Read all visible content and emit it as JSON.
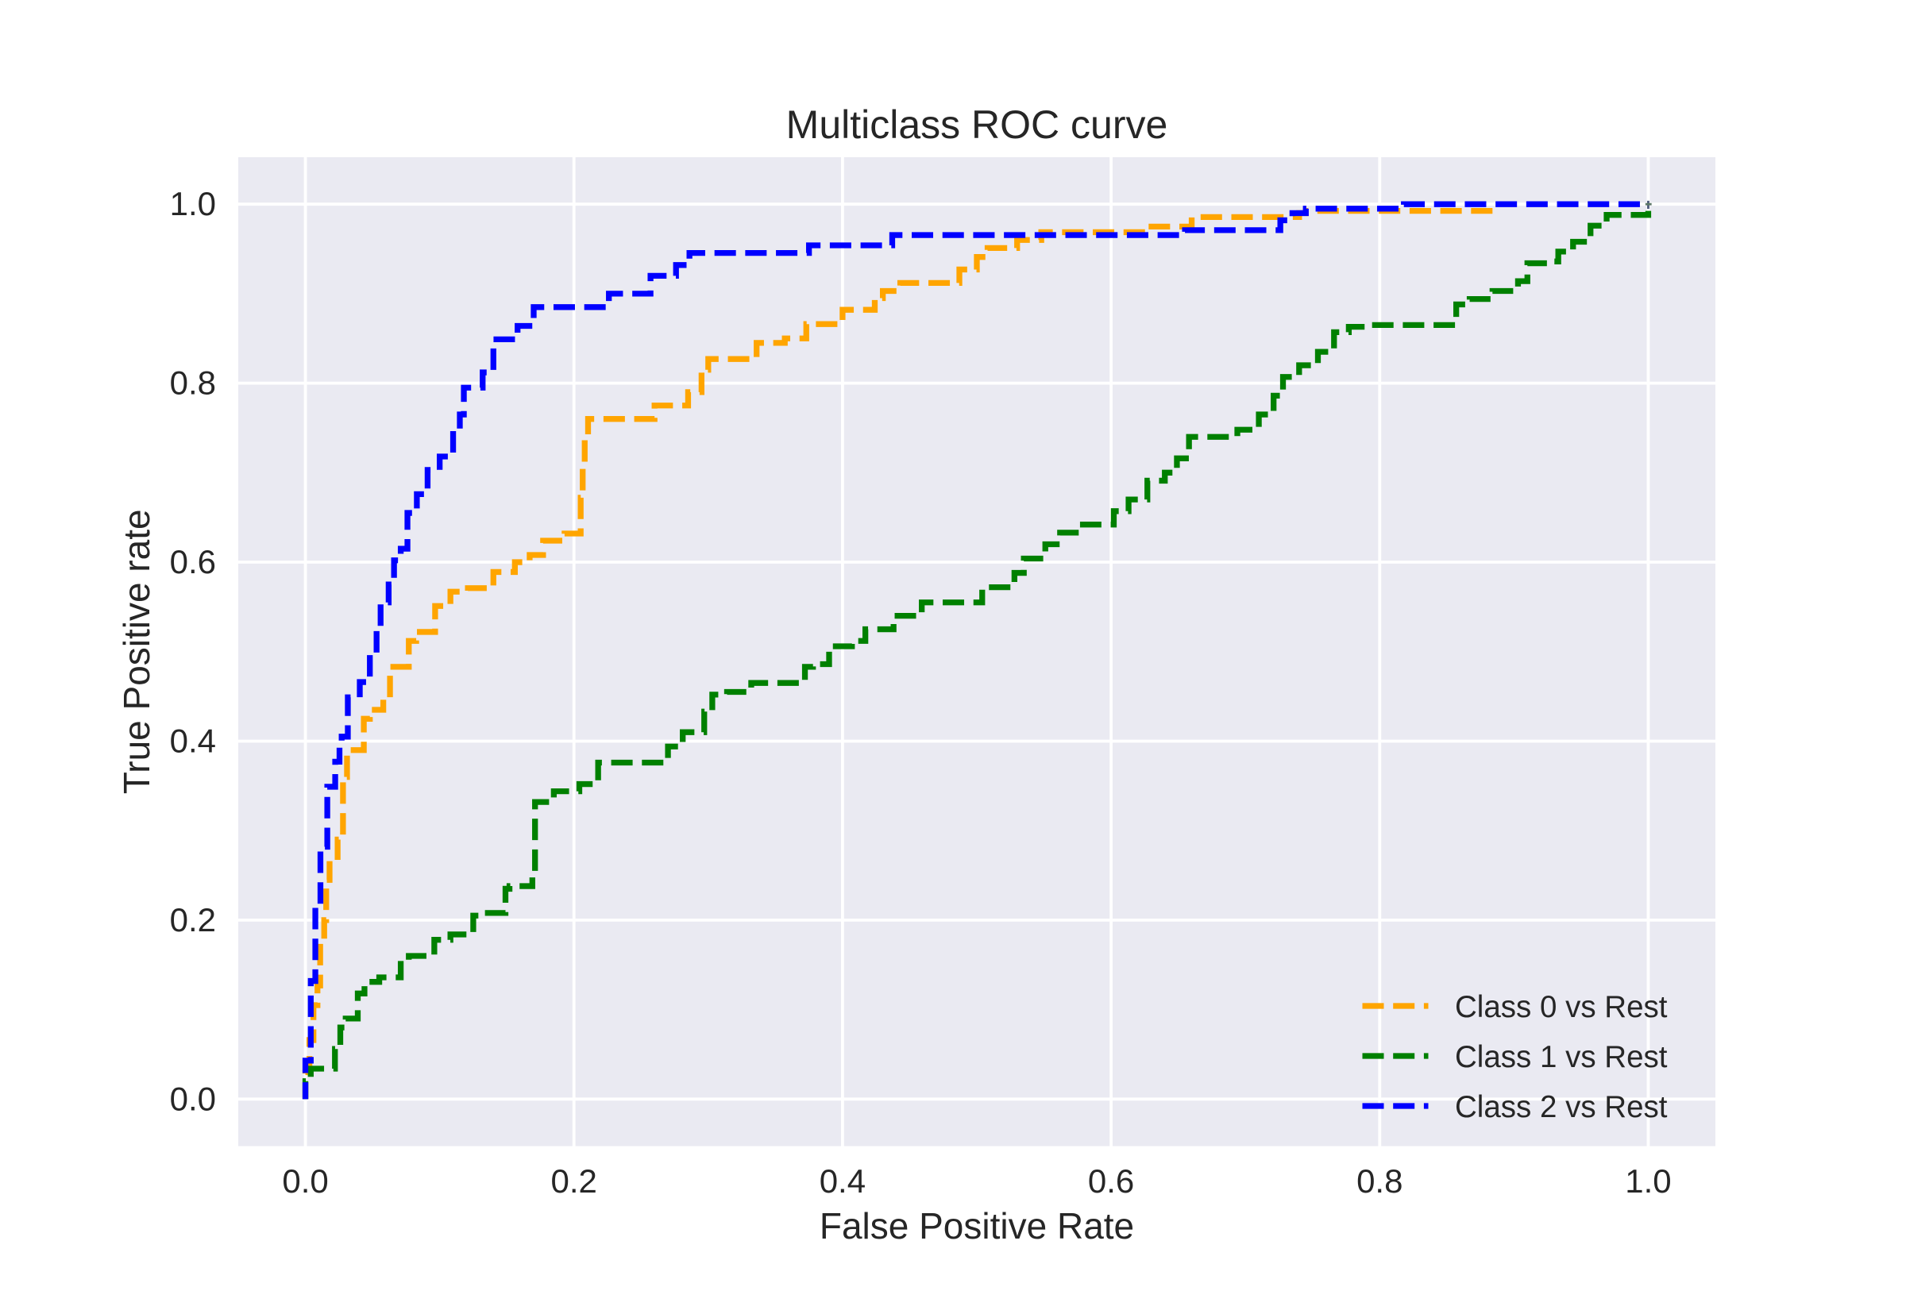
{
  "chart_data": {
    "type": "line",
    "title": "Multiclass ROC curve",
    "xlabel": "False Positive Rate",
    "ylabel": "True Positive rate",
    "xlim": [
      -0.05,
      1.05
    ],
    "ylim": [
      -0.0525,
      1.0525
    ],
    "xticks": [
      "0.0",
      "0.2",
      "0.4",
      "0.6",
      "0.8",
      "1.0"
    ],
    "yticks": [
      "0.0",
      "0.2",
      "0.4",
      "0.6",
      "0.8",
      "1.0"
    ],
    "xtick_values": [
      0.0,
      0.2,
      0.4,
      0.6,
      0.8,
      1.0
    ],
    "ytick_values": [
      0.0,
      0.2,
      0.4,
      0.6,
      0.8,
      1.0
    ],
    "grid": true,
    "linestyle": "dashed",
    "endpoint_marker": {
      "symbol": "+",
      "x": 1.0,
      "y": 1.0
    },
    "legend": {
      "position": "lower right",
      "entries": [
        {
          "label": "Class 0 vs Rest",
          "color": "#ffa500"
        },
        {
          "label": "Class 1 vs Rest",
          "color": "#008000"
        },
        {
          "label": "Class 2 vs Rest",
          "color": "#0000ff"
        }
      ]
    },
    "style": {
      "figure_bg": "#ffffff",
      "axes_bg": "#eaeaf2",
      "grid_color": "#ffffff",
      "text_color": "#262626"
    },
    "series": [
      {
        "name": "Class 0 vs Rest",
        "color": "#ffa500",
        "fpr": [
          0,
          0,
          0.003,
          0.003,
          0.006,
          0.006,
          0.009,
          0.009,
          0.011,
          0.011,
          0.014,
          0.014,
          0.0155,
          0.0155,
          0.018,
          0.018,
          0.024,
          0.024,
          0.028,
          0.028,
          0.031,
          0.031,
          0.0435,
          0.0435,
          0.048,
          0.048,
          0.058,
          0.058,
          0.063,
          0.063,
          0.077,
          0.077,
          0.0825,
          0.0825,
          0.0966,
          0.0966,
          0.108,
          0.108,
          0.121,
          0.121,
          0.14,
          0.14,
          0.156,
          0.156,
          0.167,
          0.167,
          0.177,
          0.177,
          0.193,
          0.193,
          0.205,
          0.205,
          0.2065,
          0.2065,
          0.208,
          0.208,
          0.2105,
          0.2105,
          0.212,
          0.26,
          0.26,
          0.285,
          0.285,
          0.295,
          0.295,
          0.3,
          0.3,
          0.336,
          0.336,
          0.357,
          0.357,
          0.373,
          0.373,
          0.4,
          0.4,
          0.424,
          0.424,
          0.43,
          0.43,
          0.443,
          0.443,
          0.487,
          0.487,
          0.5,
          0.5,
          0.508,
          0.508,
          0.53,
          0.53,
          0.548,
          0.548,
          0.627,
          0.627,
          0.66,
          0.66,
          0.74,
          0.74,
          0.745,
          0.745,
          0.884
        ],
        "tpr": [
          0,
          0.03,
          0.03,
          0.066,
          0.066,
          0.105,
          0.105,
          0.127,
          0.127,
          0.175,
          0.175,
          0.2,
          0.2,
          0.245,
          0.245,
          0.266,
          0.266,
          0.29,
          0.29,
          0.36,
          0.36,
          0.39,
          0.39,
          0.425,
          0.425,
          0.435,
          0.435,
          0.447,
          0.447,
          0.483,
          0.483,
          0.512,
          0.512,
          0.522,
          0.522,
          0.551,
          0.551,
          0.567,
          0.567,
          0.571,
          0.571,
          0.589,
          0.589,
          0.6,
          0.6,
          0.608,
          0.608,
          0.624,
          0.624,
          0.632,
          0.632,
          0.672,
          0.672,
          0.705,
          0.705,
          0.737,
          0.737,
          0.76,
          0.76,
          0.76,
          0.775,
          0.775,
          0.79,
          0.79,
          0.815,
          0.815,
          0.827,
          0.827,
          0.845,
          0.845,
          0.85,
          0.85,
          0.866,
          0.866,
          0.882,
          0.882,
          0.895,
          0.895,
          0.903,
          0.903,
          0.912,
          0.912,
          0.927,
          0.927,
          0.941,
          0.941,
          0.951,
          0.951,
          0.96,
          0.96,
          0.9687,
          0.9687,
          0.975,
          0.975,
          0.9856,
          0.9856,
          0.99,
          0.99,
          0.9925,
          0.9925
        ]
      },
      {
        "name": "Class 1 vs Rest",
        "color": "#008000",
        "fpr": [
          0,
          0,
          0.004,
          0.004,
          0.022,
          0.022,
          0.026,
          0.026,
          0.03,
          0.03,
          0.039,
          0.039,
          0.044,
          0.044,
          0.055,
          0.055,
          0.071,
          0.071,
          0.077,
          0.077,
          0.096,
          0.096,
          0.108,
          0.108,
          0.125,
          0.125,
          0.133,
          0.133,
          0.149,
          0.149,
          0.152,
          0.152,
          0.169,
          0.169,
          0.171,
          0.171,
          0.185,
          0.185,
          0.204,
          0.204,
          0.218,
          0.218,
          0.267,
          0.267,
          0.27,
          0.27,
          0.281,
          0.281,
          0.297,
          0.297,
          0.303,
          0.303,
          0.314,
          0.314,
          0.332,
          0.332,
          0.372,
          0.372,
          0.378,
          0.378,
          0.39,
          0.39,
          0.407,
          0.407,
          0.417,
          0.417,
          0.438,
          0.438,
          0.459,
          0.459,
          0.504,
          0.504,
          0.528,
          0.528,
          0.535,
          0.535,
          0.551,
          0.551,
          0.562,
          0.562,
          0.579,
          0.579,
          0.602,
          0.602,
          0.613,
          0.613,
          0.627,
          0.627,
          0.64,
          0.64,
          0.649,
          0.649,
          0.658,
          0.658,
          0.694,
          0.694,
          0.71,
          0.71,
          0.721,
          0.721,
          0.728,
          0.728,
          0.74,
          0.74,
          0.754,
          0.754,
          0.766,
          0.766,
          0.777,
          0.777,
          0.793,
          0.793,
          0.857,
          0.857,
          0.867,
          0.867,
          0.884,
          0.884,
          0.903,
          0.903,
          0.91,
          0.91,
          0.925,
          0.925,
          0.933,
          0.933,
          0.944,
          0.944,
          0.957,
          0.957,
          0.969,
          0.969,
          1.0,
          1.0
        ],
        "tpr": [
          0,
          0.02,
          0.02,
          0.034,
          0.034,
          0.056,
          0.056,
          0.08,
          0.08,
          0.09,
          0.09,
          0.118,
          0.118,
          0.131,
          0.131,
          0.136,
          0.136,
          0.155,
          0.155,
          0.16,
          0.16,
          0.178,
          0.178,
          0.184,
          0.184,
          0.205,
          0.205,
          0.208,
          0.208,
          0.235,
          0.235,
          0.238,
          0.238,
          0.252,
          0.252,
          0.332,
          0.332,
          0.344,
          0.344,
          0.352,
          0.352,
          0.376,
          0.376,
          0.381,
          0.381,
          0.394,
          0.394,
          0.41,
          0.41,
          0.433,
          0.433,
          0.452,
          0.452,
          0.455,
          0.455,
          0.465,
          0.465,
          0.483,
          0.483,
          0.486,
          0.486,
          0.506,
          0.506,
          0.512,
          0.512,
          0.525,
          0.525,
          0.54,
          0.54,
          0.555,
          0.555,
          0.572,
          0.572,
          0.588,
          0.588,
          0.604,
          0.604,
          0.62,
          0.62,
          0.633,
          0.633,
          0.642,
          0.642,
          0.657,
          0.657,
          0.67,
          0.67,
          0.691,
          0.691,
          0.7,
          0.7,
          0.716,
          0.716,
          0.74,
          0.74,
          0.748,
          0.748,
          0.765,
          0.765,
          0.786,
          0.786,
          0.807,
          0.807,
          0.82,
          0.82,
          0.835,
          0.835,
          0.857,
          0.857,
          0.863,
          0.863,
          0.865,
          0.865,
          0.888,
          0.888,
          0.894,
          0.894,
          0.903,
          0.903,
          0.914,
          0.914,
          0.934,
          0.934,
          0.936,
          0.936,
          0.947,
          0.947,
          0.958,
          0.958,
          0.976,
          0.976,
          0.988,
          0.988,
          1.0
        ]
      },
      {
        "name": "Class 2 vs Rest",
        "color": "#0000ff",
        "fpr": [
          0,
          0,
          0.004,
          0.004,
          0.0074,
          0.0074,
          0.0112,
          0.0112,
          0.0163,
          0.0163,
          0.0222,
          0.0222,
          0.0254,
          0.0254,
          0.027,
          0.027,
          0.0316,
          0.0316,
          0.0405,
          0.0405,
          0.048,
          0.048,
          0.053,
          0.053,
          0.056,
          0.056,
          0.062,
          0.062,
          0.066,
          0.066,
          0.071,
          0.071,
          0.076,
          0.076,
          0.083,
          0.083,
          0.091,
          0.091,
          0.1,
          0.1,
          0.11,
          0.11,
          0.115,
          0.115,
          0.118,
          0.118,
          0.132,
          0.132,
          0.14,
          0.14,
          0.158,
          0.158,
          0.17,
          0.17,
          0.226,
          0.226,
          0.257,
          0.257,
          0.276,
          0.276,
          0.286,
          0.286,
          0.375,
          0.375,
          0.437,
          0.437,
          0.655,
          0.655,
          0.726,
          0.726,
          0.735,
          0.735,
          0.745,
          0.745,
          0.818,
          0.818,
          1.0
        ],
        "tpr": [
          0,
          0.043,
          0.043,
          0.132,
          0.132,
          0.218,
          0.218,
          0.282,
          0.282,
          0.349,
          0.349,
          0.377,
          0.377,
          0.394,
          0.394,
          0.405,
          0.405,
          0.449,
          0.449,
          0.466,
          0.466,
          0.497,
          0.497,
          0.525,
          0.525,
          0.555,
          0.555,
          0.575,
          0.575,
          0.602,
          0.602,
          0.615,
          0.615,
          0.655,
          0.655,
          0.676,
          0.676,
          0.703,
          0.703,
          0.718,
          0.718,
          0.747,
          0.747,
          0.765,
          0.765,
          0.795,
          0.795,
          0.812,
          0.812,
          0.849,
          0.849,
          0.864,
          0.864,
          0.885,
          0.885,
          0.9,
          0.9,
          0.92,
          0.92,
          0.932,
          0.932,
          0.9455,
          0.9455,
          0.954,
          0.954,
          0.9655,
          0.9655,
          0.971,
          0.971,
          0.982,
          0.982,
          0.99,
          0.99,
          0.995,
          0.995,
          1.0,
          1.0
        ]
      }
    ]
  }
}
